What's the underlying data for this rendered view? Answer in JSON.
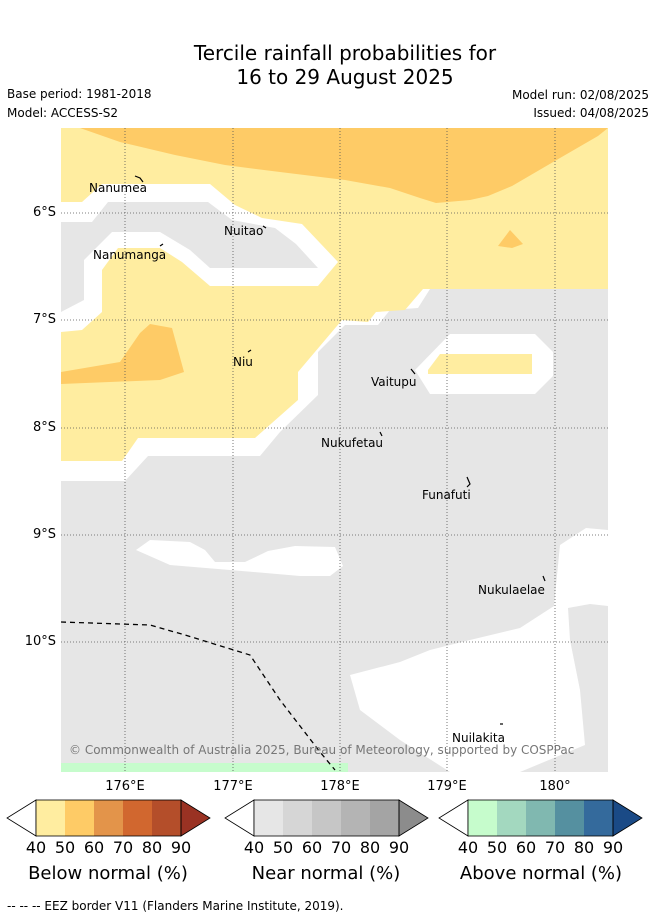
{
  "title_line1": "Tercile rainfall probabilities for",
  "title_line2": "16 to 29 August 2025",
  "base_period": "Base period: 1981-2018",
  "model": "Model: ACCESS-S2",
  "model_run": "Model run: 02/08/2025",
  "issued": "Issued: 04/08/2025",
  "lat_labels": [
    "6°S",
    "7°S",
    "8°S",
    "9°S",
    "10°S"
  ],
  "lon_labels": [
    "176°E",
    "177°E",
    "178°E",
    "179°E",
    "180°"
  ],
  "places": {
    "nanumea": "Nanumea",
    "nuitao": "Nuitao",
    "nanumanga": "Nanumanga",
    "niu": "Niu",
    "vaitupu": "Vaitupu",
    "nukufetau": "Nukufetau",
    "funafuti": "Funafuti",
    "nukulaelae": "Nukulaelae",
    "nuilakita": "Nuilakita"
  },
  "copyright": "© Commonwealth of Australia 2025, Bureau of Meteorology, supported by COSPPac",
  "colorbars": {
    "below": {
      "title": "Below normal (%)",
      "ticks": [
        "40",
        "50",
        "60",
        "70",
        "80",
        "90"
      ],
      "colors": [
        "#ffffff",
        "#ffeda0",
        "#fecb66",
        "#e3944a",
        "#d1672f",
        "#b44e2a",
        "#9a3223"
      ]
    },
    "near": {
      "title": "Near normal (%)",
      "ticks": [
        "40",
        "50",
        "60",
        "70",
        "80",
        "90"
      ],
      "colors": [
        "#ffffff",
        "#e6e6e6",
        "#d6d6d6",
        "#c6c6c6",
        "#b4b4b4",
        "#a4a4a4",
        "#8c8c8c"
      ]
    },
    "above": {
      "title": "Above normal (%)",
      "ticks": [
        "40",
        "50",
        "60",
        "70",
        "80",
        "90"
      ],
      "colors": [
        "#ffffff",
        "#c6fccc",
        "#a3d8bf",
        "#80b8b0",
        "#5590a0",
        "#346a9c",
        "#1a4a86"
      ]
    }
  },
  "footnote": "--  --  -- EEZ border V11 (Flanders Marine Institute, 2019)."
}
